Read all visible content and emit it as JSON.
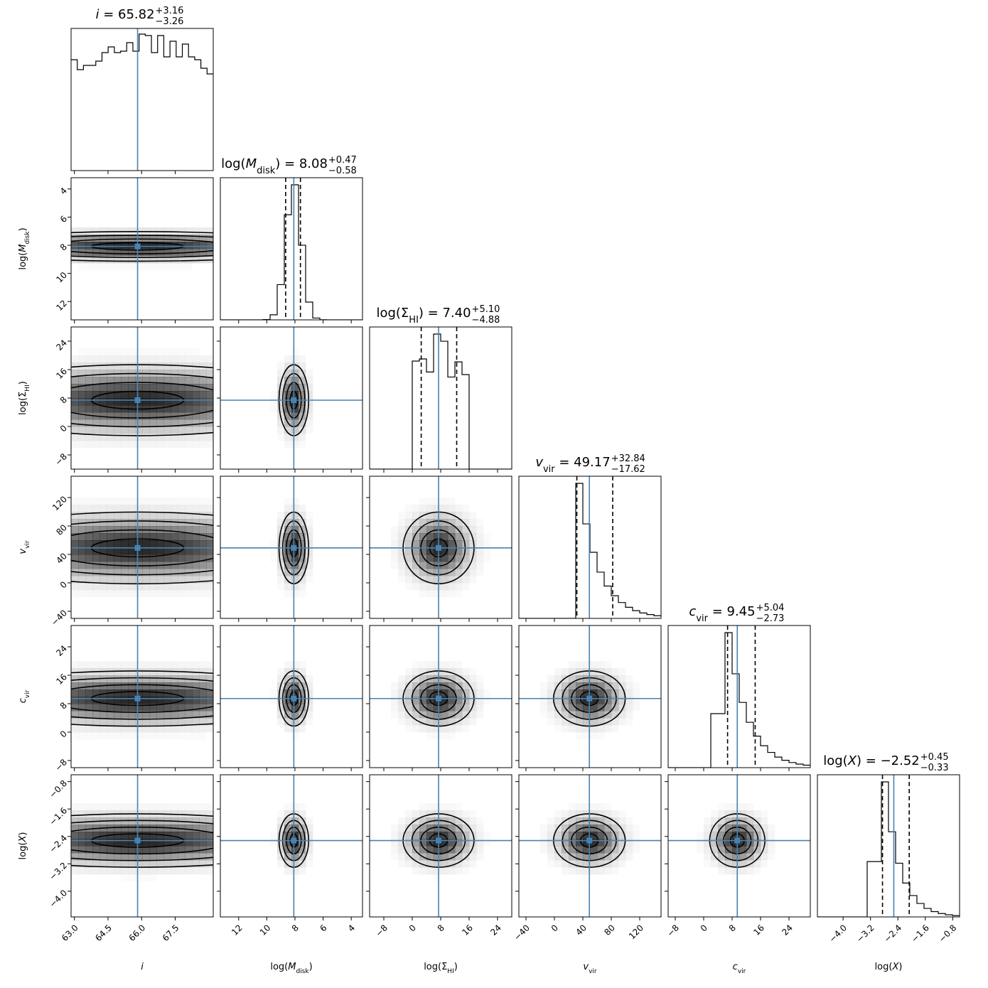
{
  "chart_data": {
    "type": "corner",
    "params": [
      {
        "key": "i",
        "title": "i = 65.82",
        "title_var": "i",
        "value": "65.82",
        "plus": "+3.16",
        "minus": "−3.26",
        "axis_label": "i",
        "range": [
          62.85,
          69.2
        ],
        "invert": false,
        "ticks": [
          63.0,
          64.5,
          66.0,
          67.5
        ],
        "tick_labels": [
          "63.0",
          "64.5",
          "66.0",
          "67.5"
        ],
        "truth": 65.82,
        "show_quantiles": false,
        "hist": [
          0.78,
          0.71,
          0.74,
          0.74,
          0.77,
          0.83,
          0.87,
          0.83,
          0.84,
          0.9,
          0.84,
          0.96,
          0.95,
          0.83,
          0.95,
          0.8,
          0.91,
          0.8,
          0.89,
          0.8,
          0.78,
          0.72,
          0.68
        ]
      },
      {
        "key": "logM",
        "title": "log(M_disk) = 8.08",
        "title_var": "log(M_disk)",
        "value": "8.08",
        "plus": "+0.47",
        "minus": "−0.58",
        "axis_label": "log(M_disk)",
        "range": [
          13.3,
          3.2
        ],
        "invert": true,
        "ticks": [
          12,
          10,
          8,
          6,
          4
        ],
        "tick_labels": [
          "12",
          "10",
          "8",
          "6",
          "4"
        ],
        "truth": 8.08,
        "q16": 8.66,
        "q84": 7.61,
        "show_quantiles": true
      },
      {
        "key": "logS",
        "title": "log(Σ_HI) = 7.40",
        "title_var": "log(Σ_HI)",
        "value": "7.40",
        "plus": "+5.10",
        "minus": "−4.88",
        "axis_label": "log(Σ_HI)",
        "range": [
          -12.0,
          28.0
        ],
        "invert": false,
        "ticks": [
          -8,
          0,
          8,
          16,
          24
        ],
        "tick_labels": [
          "−8",
          "0",
          "8",
          "16",
          "24"
        ],
        "truth": 7.4,
        "q16": 2.52,
        "q84": 12.5,
        "show_quantiles": true
      },
      {
        "key": "vvir",
        "title": "v_vir = 49.17",
        "title_var": "v_vir",
        "value": "49.17",
        "plus": "+32.84",
        "minus": "−17.62",
        "axis_label": "v_vir",
        "range": [
          -50,
          150
        ],
        "invert": false,
        "ticks": [
          -40,
          0,
          40,
          80,
          120
        ],
        "tick_labels": [
          "−40",
          "0",
          "40",
          "80",
          "120"
        ],
        "truth": 49.17,
        "q16": 31.55,
        "q84": 82.01,
        "show_quantiles": true
      },
      {
        "key": "cvir",
        "title": "c_vir = 9.45",
        "title_var": "c_vir",
        "value": "9.45",
        "plus": "+5.04",
        "minus": "−2.73",
        "axis_label": "c_vir",
        "range": [
          -10.0,
          30.0
        ],
        "invert": false,
        "ticks": [
          -8,
          0,
          8,
          16,
          24
        ],
        "tick_labels": [
          "−8",
          "0",
          "8",
          "16",
          "24"
        ],
        "truth": 9.45,
        "q16": 6.72,
        "q84": 14.49,
        "show_quantiles": true
      },
      {
        "key": "logX",
        "title": "log(X) = −2.52",
        "title_var": "log(X)",
        "value": "−2.52",
        "plus": "+0.45",
        "minus": "−0.33",
        "axis_label": "log(X)",
        "range": [
          -4.75,
          -0.6
        ],
        "invert": false,
        "ticks": [
          -4.0,
          -3.2,
          -2.4,
          -1.6,
          -0.8
        ],
        "tick_labels": [
          "−4.0",
          "−3.2",
          "−2.4",
          "−1.6",
          "−0.8"
        ],
        "truth": -2.52,
        "q16": -2.85,
        "q84": -2.07,
        "show_quantiles": true
      }
    ],
    "lines": {
      "truth_color": "#4682b4",
      "hist_color": "#000000",
      "contour_color": "#000000",
      "density_color": "#000000"
    },
    "grid": false,
    "legend": "none"
  }
}
